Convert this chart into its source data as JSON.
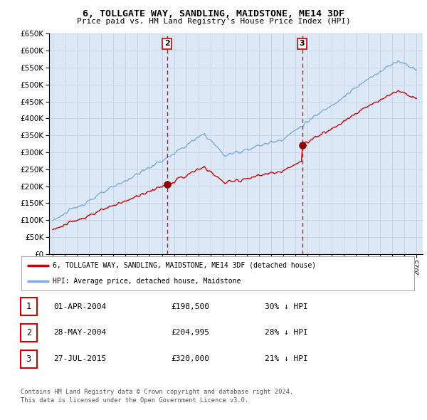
{
  "title": "6, TOLLGATE WAY, SANDLING, MAIDSTONE, ME14 3DF",
  "subtitle": "Price paid vs. HM Land Registry's House Price Index (HPI)",
  "ylim": [
    0,
    650000
  ],
  "yticks": [
    0,
    50000,
    100000,
    150000,
    200000,
    250000,
    300000,
    350000,
    400000,
    450000,
    500000,
    550000,
    600000,
    650000
  ],
  "xlim_start": 1994.7,
  "xlim_end": 2025.5,
  "grid_color": "#c8d0e0",
  "background_color": "#ffffff",
  "plot_bg_color": "#dce8f8",
  "hpi_line_color": "#7aaddc",
  "price_line_color": "#cc0000",
  "vline_color": "#cc0000",
  "legend_label_price": "6, TOLLGATE WAY, SANDLING, MAIDSTONE, ME14 3DF (detached house)",
  "legend_label_hpi": "HPI: Average price, detached house, Maidstone",
  "transactions": [
    {
      "num": 1,
      "date": "01-APR-2004",
      "x": 2004.25,
      "price": 198500,
      "pct": "30%",
      "label": "1"
    },
    {
      "num": 2,
      "date": "28-MAY-2004",
      "x": 2004.42,
      "price": 204995,
      "pct": "28%",
      "label": "2"
    },
    {
      "num": 3,
      "date": "27-JUL-2015",
      "x": 2015.56,
      "price": 320000,
      "pct": "21%",
      "label": "3"
    }
  ],
  "footer_line1": "Contains HM Land Registry data © Crown copyright and database right 2024.",
  "footer_line2": "This data is licensed under the Open Government Licence v3.0.",
  "table_rows": [
    {
      "num": "1",
      "date": "01-APR-2004",
      "price": "£198,500",
      "pct": "30% ↓ HPI"
    },
    {
      "num": "2",
      "date": "28-MAY-2004",
      "price": "£204,995",
      "pct": "28% ↓ HPI"
    },
    {
      "num": "3",
      "date": "27-JUL-2015",
      "price": "£320,000",
      "pct": "21% ↓ HPI"
    }
  ]
}
